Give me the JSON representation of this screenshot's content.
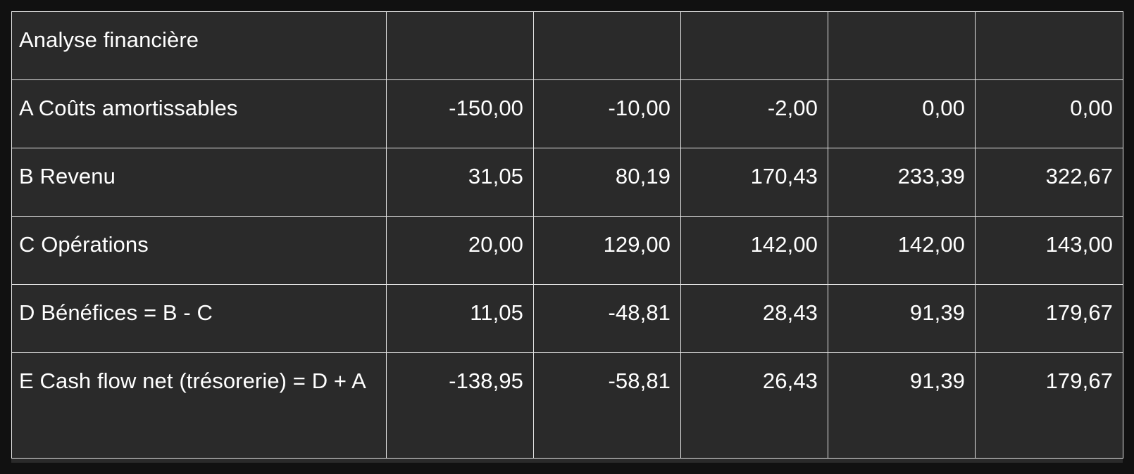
{
  "table": {
    "header": {
      "title": "Analyse financière",
      "extra_cells": [
        "",
        "",
        "",
        "",
        ""
      ]
    },
    "rows": [
      {
        "label": "A Coûts amortissables",
        "values": [
          "-150,00",
          "-10,00",
          "-2,00",
          "0,00",
          "0,00"
        ]
      },
      {
        "label": "B Revenu",
        "values": [
          "31,05",
          "80,19",
          "170,43",
          "233,39",
          "322,67"
        ]
      },
      {
        "label": "C Opérations",
        "values": [
          "20,00",
          "129,00",
          "142,00",
          "142,00",
          "143,00"
        ]
      },
      {
        "label": "D Bénéfices = B - C",
        "values": [
          "11,05",
          "-48,81",
          "28,43",
          "91,39",
          "179,67"
        ]
      },
      {
        "label": "E Cash flow net (trésorerie) = D + A",
        "values": [
          "-138,95",
          "-58,81",
          "26,43",
          "91,39",
          "179,67"
        ]
      }
    ]
  },
  "colors": {
    "background": "#111111",
    "table_background": "#2a2a2a",
    "border": "#e6e6e6",
    "text": "#ffffff"
  }
}
